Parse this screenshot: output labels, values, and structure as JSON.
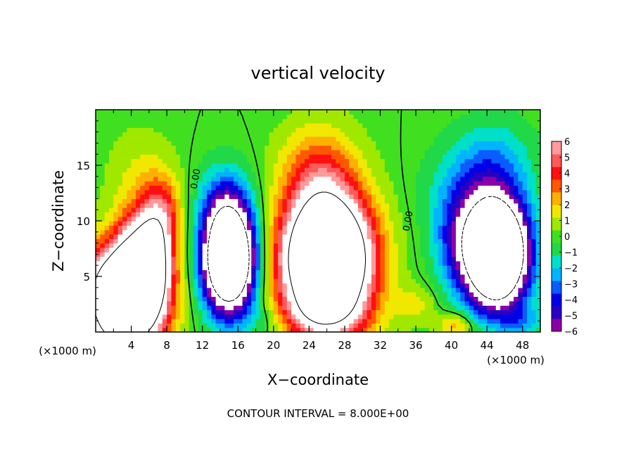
{
  "chart_data": {
    "type": "heatmap",
    "title": "vertical velocity",
    "xlabel": "X−coordinate",
    "ylabel": "Z−coordinate",
    "x_unit_left": "(×1000 m)",
    "x_unit_right": "(×1000 m)",
    "xlim": [
      0,
      50
    ],
    "ylim": [
      0,
      20
    ],
    "x_ticks": [
      4,
      8,
      12,
      16,
      20,
      24,
      28,
      32,
      36,
      40,
      44,
      48
    ],
    "y_ticks": [
      5,
      10,
      15
    ],
    "colorbar": {
      "ticks": [
        6,
        5,
        4,
        3,
        2,
        1,
        0,
        -1,
        -2,
        -3,
        -4,
        -5,
        -6
      ],
      "tick_labels": [
        "6",
        "5",
        "4",
        "3",
        "2",
        "1",
        "0",
        "−1",
        "−2",
        "−3",
        "−4",
        "−5",
        "−6"
      ],
      "range": [
        -6,
        6
      ],
      "colors": [
        "#8a00a8",
        "#2a00c0",
        "#0000e8",
        "#0a5cff",
        "#00b4ff",
        "#00e0c8",
        "#20d848",
        "#40e020",
        "#a0e800",
        "#f0e800",
        "#ffb000",
        "#ff5800",
        "#ff1010",
        "#ff5a5a",
        "#ff9a9a"
      ]
    },
    "contour_labels": [
      "0.00",
      "0.00"
    ],
    "footnote": "CONTOUR INTERVAL = 8.000E+00",
    "cells": [
      {
        "x": 3.2,
        "z": 3.3,
        "sx": 3.0,
        "sz": 3.6,
        "v": 16
      },
      {
        "x": 6.0,
        "z": 6.5,
        "sx": 1.7,
        "sz": 3.2,
        "v": 7
      },
      {
        "x": 7.5,
        "z": 10.5,
        "sx": 1.5,
        "sz": 2.5,
        "v": 3.5
      },
      {
        "x": 5.0,
        "z": 14.0,
        "sx": 2.5,
        "sz": 3.0,
        "v": 1.2
      },
      {
        "x": 15.0,
        "z": 6.5,
        "sx": 2.0,
        "sz": 3.2,
        "v": -16
      },
      {
        "x": 14.5,
        "z": 11.5,
        "sx": 2.0,
        "sz": 2.5,
        "v": -3
      },
      {
        "x": 26.0,
        "z": 6.5,
        "sx": 3.4,
        "sz": 4.0,
        "v": 18
      },
      {
        "x": 25.0,
        "z": 14.5,
        "sx": 3.0,
        "sz": 3.0,
        "v": 3
      },
      {
        "x": 25.5,
        "z": 1.5,
        "sx": 4.0,
        "sz": 1.5,
        "v": 2
      },
      {
        "x": 45.0,
        "z": 7.0,
        "sx": 2.4,
        "sz": 3.2,
        "v": -18
      },
      {
        "x": 43.0,
        "z": 12.5,
        "sx": 3.5,
        "sz": 3.0,
        "v": -3
      },
      {
        "x": 45.0,
        "z": 16.0,
        "sx": 3.0,
        "sz": 2.5,
        "v": -1.4
      },
      {
        "x": 40.5,
        "z": 8.0,
        "sx": 2.0,
        "sz": 3.0,
        "v": -2.5
      },
      {
        "x": 1.0,
        "z": 8.0,
        "sx": 1.2,
        "sz": 2.5,
        "v": -1.2
      },
      {
        "x": 36.0,
        "z": 2.5,
        "sx": 1.5,
        "sz": 1.2,
        "v": 1.5
      },
      {
        "x": 40.5,
        "z": 0.6,
        "sx": 1.5,
        "sz": 0.8,
        "v": 2.5
      },
      {
        "x": 19.0,
        "z": 1.0,
        "sx": 1.8,
        "sz": 1.2,
        "v": -1.2
      },
      {
        "x": 48.0,
        "z": 1.0,
        "sx": 1.5,
        "sz": 1.0,
        "v": -2
      }
    ]
  }
}
